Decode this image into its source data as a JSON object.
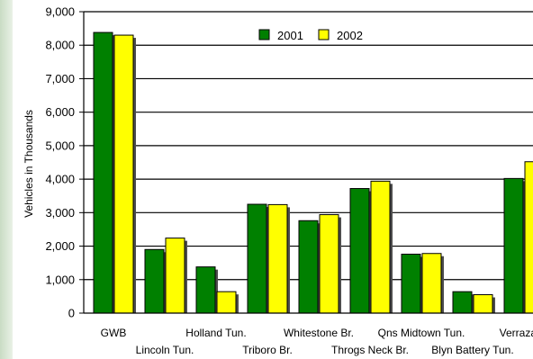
{
  "chart_data": {
    "type": "bar",
    "ylabel": "Vehicles in Thousands",
    "ylim": [
      0,
      9000
    ],
    "yticks": [
      0,
      1000,
      2000,
      3000,
      4000,
      5000,
      6000,
      7000,
      8000,
      9000
    ],
    "ytick_labels": [
      "0",
      "1,000",
      "2,000",
      "3,000",
      "4,000",
      "5,000",
      "6,000",
      "7,000",
      "8,000",
      "9,000"
    ],
    "categories": [
      "GWB",
      "Lincoln Tun.",
      "Holland Tun.",
      "Triboro Br.",
      "Whitestone Br.",
      "Throgs Neck Br.",
      "Qns Midtown Tun.",
      "Blyn Battery Tun.",
      "Verrazano"
    ],
    "series": [
      {
        "name": "2001",
        "color": "#008000",
        "values": [
          8380,
          1900,
          1380,
          3250,
          2760,
          3720,
          1760,
          640,
          4020
        ]
      },
      {
        "name": "2002",
        "color": "#ffff00",
        "values": [
          8300,
          2240,
          640,
          3240,
          2940,
          3940,
          1780,
          550,
          4520
        ]
      }
    ],
    "legend": "top-center",
    "grid": true
  }
}
